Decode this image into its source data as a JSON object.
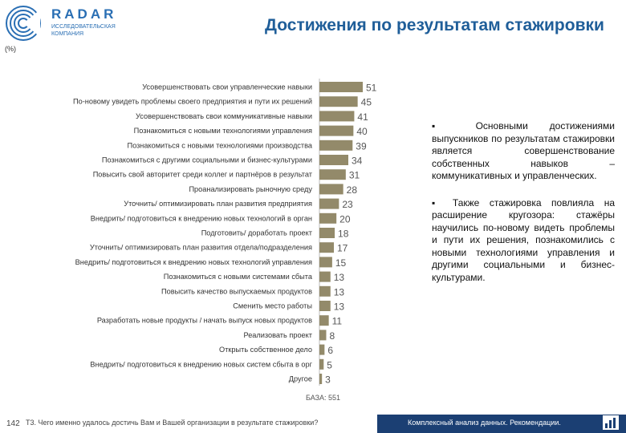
{
  "header": {
    "logo_word": "RADAR",
    "logo_sub": "ИССЛЕДОВАТЕЛЬСКАЯ КОМПАНИЯ",
    "title": "Достижения по результатам стажировки",
    "unit": "(%)"
  },
  "chart_data": {
    "type": "bar",
    "orientation": "horizontal",
    "categories": [
      "Усовершенствовать свои управленческие навыки",
      "По-новому увидеть проблемы своего предприятия и пути их решений",
      "Усовершенствовать свои коммуникативные навыки",
      "Познакомиться с новыми технологиями управления",
      "Познакомиться с новыми технологиями производства",
      "Познакомиться с другими социальными и бизнес-культурами",
      "Повысить свой авторитет среди коллег и партнёров в результат",
      "Проанализировать рыночную среду",
      "Уточнить/ оптимизировать план развития предприятия",
      "Внедрить/ подготовиться к внедрению новых технологий в орган",
      "Подготовить/ доработать проект",
      "Уточнить/ оптимизировать план развития отдела/подразделения",
      "Внедрить/ подготовиться к внедрению новых технологий управления",
      "Познакомиться с новыми системами сбыта",
      "Повысить качество выпускаемых продуктов",
      "Сменить место работы",
      "Разработать новые продукты / начать выпуск новых продуктов",
      "Реализовать проект",
      "Открыть собственное дело",
      "Внедрить/ подготовиться к внедрению новых систем сбыта в орг",
      "Другое"
    ],
    "values": [
      51,
      45,
      41,
      40,
      39,
      34,
      31,
      28,
      23,
      20,
      18,
      17,
      15,
      13,
      13,
      13,
      11,
      8,
      6,
      5,
      3
    ],
    "xlim": [
      0,
      51
    ],
    "bar_color": "#938a6a",
    "grid": false,
    "base_note": "БАЗА: 551"
  },
  "notes": [
    "▪ Основными достижениями выпускников по результатам стажировки является совершенствование собственных навыков – коммуникативных и управленческих.",
    "▪ Также стажировка повлияла на расширение кругозора: стажёры научились по-новому видеть проблемы и пути их решения, познакомились с новыми технологиями управления и другими социальными и бизнес-культурами."
  ],
  "footer": {
    "page_number": "142",
    "question": "Т3. Чего именно удалось достичь Вам и Вашей организации в результате стажировки?",
    "band_text": "Комплексный анализ данных. Рекомендации.",
    "band_color": "#1b3f73"
  }
}
